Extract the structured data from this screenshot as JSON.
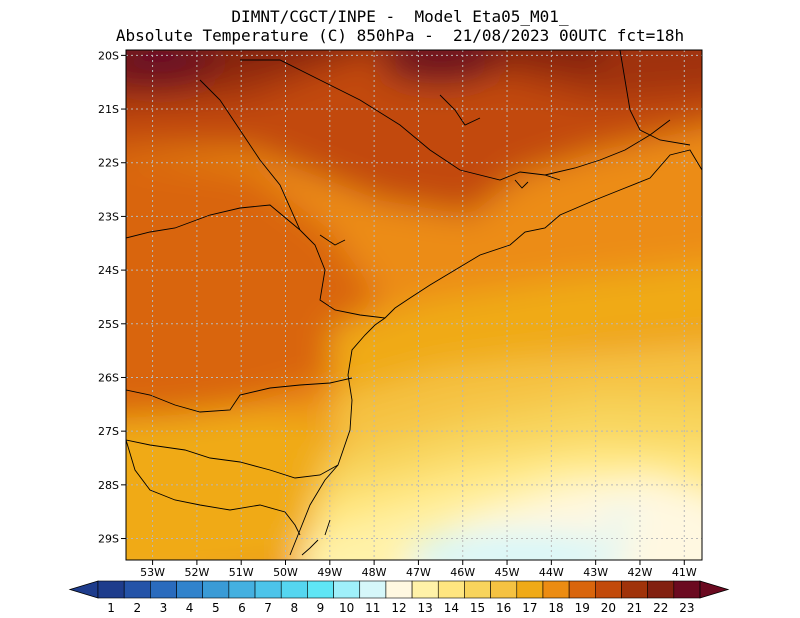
{
  "header": {
    "line1": "DIMNT/CGCT/INPE -  Model Eta05_M01_",
    "line2": "Absolute Temperature (C) 850hPa -  21/08/2023 00UTC fct=18h"
  },
  "map": {
    "lat_ticks": [
      "20S",
      "21S",
      "22S",
      "23S",
      "24S",
      "25S",
      "26S",
      "27S",
      "28S",
      "29S"
    ],
    "lon_ticks": [
      "53W",
      "52W",
      "51W",
      "50W",
      "49W",
      "48W",
      "47W",
      "46W",
      "45W",
      "44W",
      "43W",
      "42W",
      "41W"
    ],
    "lat_range": [
      -29.4,
      -19.9
    ],
    "lon_range": [
      -53.6,
      -40.6
    ],
    "field_unit": "C",
    "border_color": "#000000",
    "grid_color": "#b8b8b8"
  },
  "colorbar": {
    "labels": [
      "1",
      "2",
      "3",
      "4",
      "5",
      "6",
      "7",
      "8",
      "9",
      "10",
      "11",
      "12",
      "13",
      "14",
      "15",
      "16",
      "17",
      "18",
      "19",
      "20",
      "21",
      "22",
      "23"
    ],
    "colors": [
      "#1e3c8c",
      "#2453a8",
      "#2a6bbd",
      "#3183cc",
      "#3a9bd6",
      "#44b0e0",
      "#4cc4ea",
      "#55d6f0",
      "#5fe6f5",
      "#9ff0fa",
      "#d6f7fa",
      "#fff8e1",
      "#fff2a8",
      "#ffe680",
      "#f8d45c",
      "#f5c242",
      "#f0aa17",
      "#ec8c12",
      "#d9650c",
      "#c24a0a",
      "#a0330a",
      "#822010",
      "#6b0a20"
    ]
  }
}
